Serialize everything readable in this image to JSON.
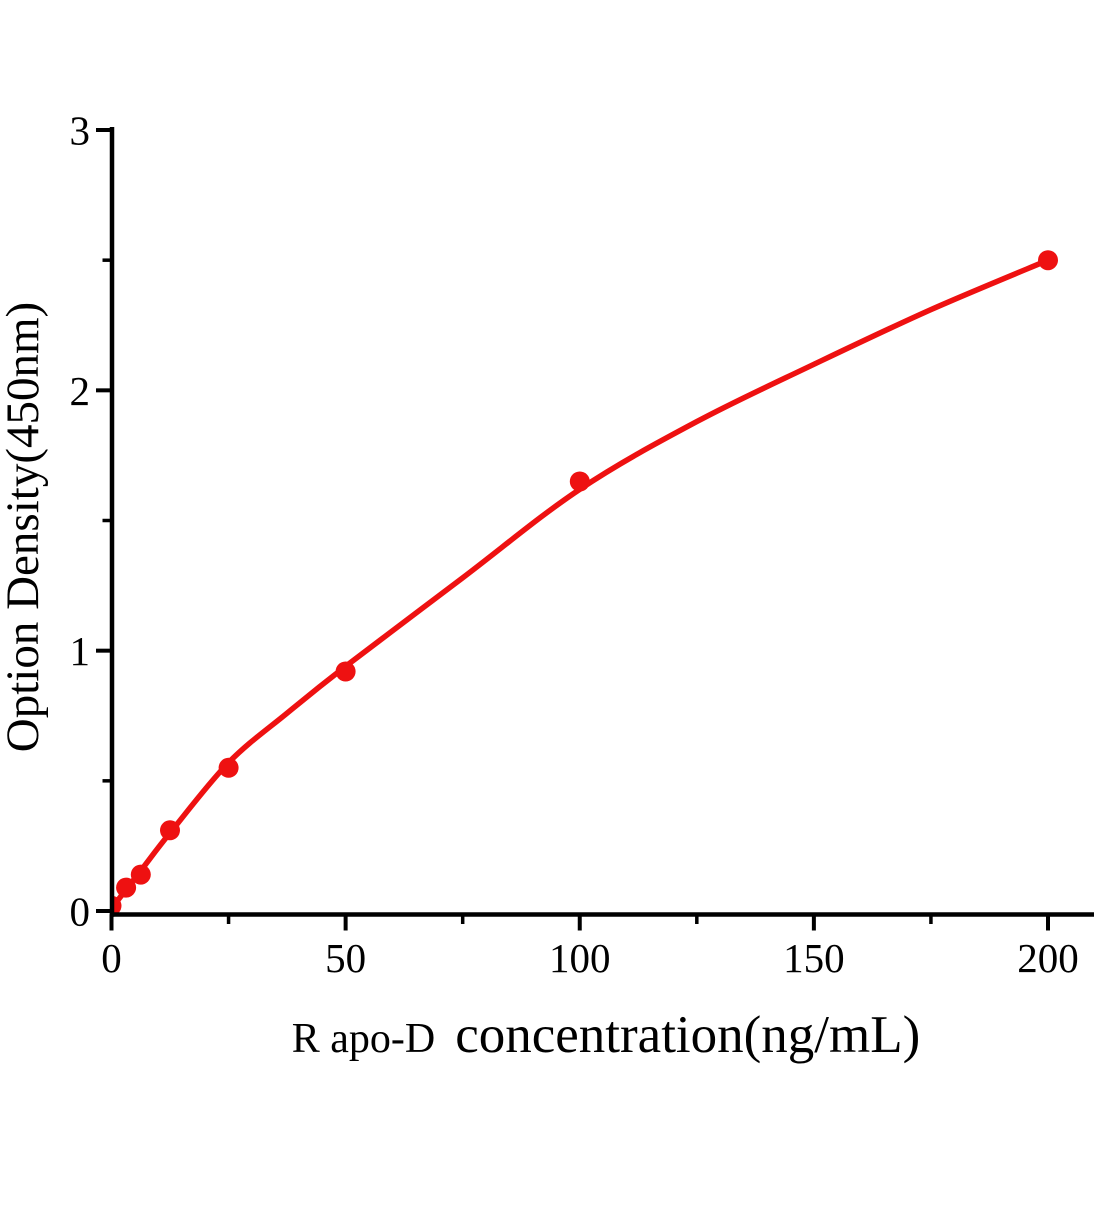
{
  "chart_data": {
    "type": "scatter",
    "subtype": "standard-curve-with-fit-line",
    "xlabel_prefix": "R apo-D",
    "xlabel_main": "concentration(ng/mL)",
    "ylabel": "Option Density(450nm)",
    "xlim": [
      0,
      210
    ],
    "ylim": [
      0,
      3.02
    ],
    "x_ticks_major": [
      0,
      50,
      100,
      150,
      200
    ],
    "x_ticks_minor": [
      25,
      75,
      125,
      175
    ],
    "y_ticks_major": [
      0,
      1,
      2,
      3
    ],
    "y_ticks_minor": [
      0.5,
      1.5,
      2.5
    ],
    "grid": false,
    "legend": "none",
    "series_color": "#ee1111",
    "axis_color": "#000000",
    "marker_radius": 10,
    "points": [
      {
        "x": 0,
        "y": 0.02
      },
      {
        "x": 3.125,
        "y": 0.09
      },
      {
        "x": 6.25,
        "y": 0.14
      },
      {
        "x": 12.5,
        "y": 0.31
      },
      {
        "x": 25,
        "y": 0.55
      },
      {
        "x": 50,
        "y": 0.92
      },
      {
        "x": 100,
        "y": 1.65
      },
      {
        "x": 200,
        "y": 2.5
      }
    ],
    "fit_curve": [
      {
        "x": 0,
        "y": 0.01
      },
      {
        "x": 6.25,
        "y": 0.155
      },
      {
        "x": 12.5,
        "y": 0.3
      },
      {
        "x": 25,
        "y": 0.57
      },
      {
        "x": 37.5,
        "y": 0.76
      },
      {
        "x": 50,
        "y": 0.94
      },
      {
        "x": 75,
        "y": 1.28
      },
      {
        "x": 100,
        "y": 1.62
      },
      {
        "x": 125,
        "y": 1.88
      },
      {
        "x": 150,
        "y": 2.1
      },
      {
        "x": 175,
        "y": 2.31
      },
      {
        "x": 200,
        "y": 2.5
      }
    ]
  }
}
